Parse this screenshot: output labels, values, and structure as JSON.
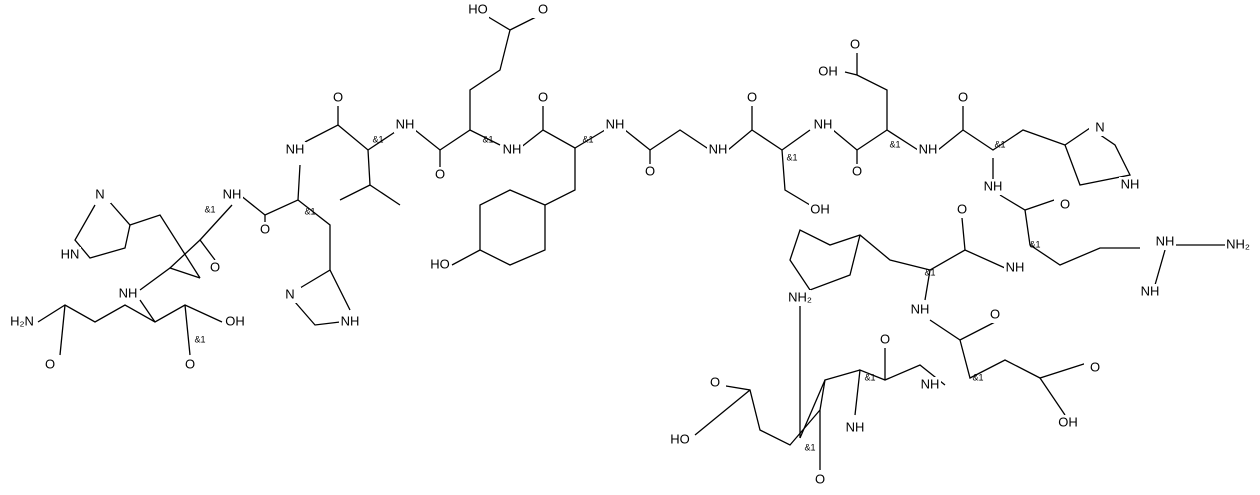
{
  "labels": [
    "HO",
    "O",
    "O",
    "NH",
    "O",
    "NH",
    "NH",
    "NH",
    "O",
    "O",
    "NH",
    "NH",
    "O",
    "OH",
    "O",
    "NH",
    "O",
    "O",
    "OH",
    "N",
    "NH",
    "NH",
    "O",
    "O",
    "HO",
    "N",
    "HN",
    "NH",
    "O",
    "O",
    "NH",
    "N",
    "NH",
    "H₂N",
    "OH",
    "O",
    "O",
    "NH",
    "NH",
    "NH₂",
    "NH",
    "NH",
    "O",
    "O",
    "NH",
    "NH₂",
    "O",
    "OH",
    "O",
    "HO",
    "NH",
    "O"
  ],
  "stereo_labels": [
    "&1",
    "&1",
    "&1",
    "&1",
    "&1",
    "&1",
    "&1",
    "&1",
    "&1",
    "&1",
    "&1",
    "&1",
    "&1",
    "&1"
  ]
}
